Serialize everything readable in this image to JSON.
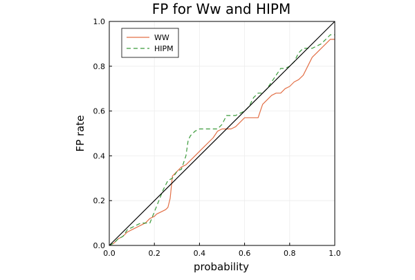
{
  "chart_data": {
    "type": "line",
    "title": "FP for Ww and HIPM",
    "xlabel": "probability",
    "ylabel": "FP rate",
    "xlim": [
      0.0,
      1.0
    ],
    "ylim": [
      0.0,
      1.0
    ],
    "xticks": [
      "0.0",
      "0.2",
      "0.4",
      "0.6",
      "0.8",
      "1.0"
    ],
    "yticks": [
      "0.0",
      "0.2",
      "0.4",
      "0.6",
      "0.8",
      "1.0"
    ],
    "grid": true,
    "legend": {
      "position": "top-left"
    },
    "series": [
      {
        "name": "WW",
        "style": "solid",
        "color": "#e26f46",
        "x": [
          0.0,
          0.02,
          0.04,
          0.06,
          0.08,
          0.1,
          0.12,
          0.14,
          0.16,
          0.18,
          0.2,
          0.21,
          0.23,
          0.25,
          0.26,
          0.27,
          0.28,
          0.3,
          0.32,
          0.34,
          0.36,
          0.38,
          0.4,
          0.42,
          0.44,
          0.46,
          0.48,
          0.5,
          0.52,
          0.54,
          0.56,
          0.58,
          0.6,
          0.62,
          0.64,
          0.66,
          0.67,
          0.68,
          0.7,
          0.72,
          0.74,
          0.76,
          0.78,
          0.8,
          0.82,
          0.84,
          0.86,
          0.88,
          0.9,
          0.92,
          0.94,
          0.96,
          0.98,
          1.0
        ],
        "y": [
          0.0,
          0.01,
          0.03,
          0.04,
          0.06,
          0.07,
          0.08,
          0.09,
          0.1,
          0.12,
          0.13,
          0.14,
          0.15,
          0.16,
          0.17,
          0.21,
          0.31,
          0.33,
          0.35,
          0.36,
          0.38,
          0.4,
          0.42,
          0.44,
          0.46,
          0.48,
          0.51,
          0.52,
          0.52,
          0.52,
          0.53,
          0.55,
          0.57,
          0.57,
          0.57,
          0.57,
          0.6,
          0.63,
          0.65,
          0.67,
          0.68,
          0.68,
          0.7,
          0.71,
          0.73,
          0.74,
          0.76,
          0.8,
          0.84,
          0.86,
          0.88,
          0.9,
          0.92,
          0.92
        ]
      },
      {
        "name": "HIPM",
        "style": "dashed",
        "color": "#3a9a3a",
        "x": [
          0.0,
          0.02,
          0.04,
          0.06,
          0.08,
          0.1,
          0.12,
          0.14,
          0.16,
          0.18,
          0.2,
          0.22,
          0.24,
          0.26,
          0.28,
          0.3,
          0.32,
          0.34,
          0.35,
          0.36,
          0.38,
          0.4,
          0.42,
          0.44,
          0.46,
          0.48,
          0.5,
          0.52,
          0.54,
          0.56,
          0.58,
          0.6,
          0.62,
          0.64,
          0.66,
          0.68,
          0.7,
          0.72,
          0.74,
          0.76,
          0.78,
          0.8,
          0.82,
          0.84,
          0.86,
          0.88,
          0.9,
          0.92,
          0.94,
          0.96,
          0.98,
          1.0
        ],
        "y": [
          0.0,
          0.01,
          0.03,
          0.04,
          0.07,
          0.08,
          0.09,
          0.1,
          0.1,
          0.1,
          0.15,
          0.2,
          0.25,
          0.29,
          0.3,
          0.33,
          0.34,
          0.4,
          0.47,
          0.49,
          0.51,
          0.52,
          0.52,
          0.52,
          0.52,
          0.52,
          0.54,
          0.58,
          0.58,
          0.58,
          0.59,
          0.6,
          0.62,
          0.66,
          0.68,
          0.68,
          0.7,
          0.73,
          0.76,
          0.79,
          0.79,
          0.8,
          0.82,
          0.86,
          0.88,
          0.88,
          0.88,
          0.89,
          0.9,
          0.92,
          0.94,
          0.94
        ]
      },
      {
        "name": "",
        "style": "solid",
        "color": "#000000",
        "x": [
          0.0,
          1.0
        ],
        "y": [
          0.0,
          1.0
        ]
      }
    ]
  }
}
